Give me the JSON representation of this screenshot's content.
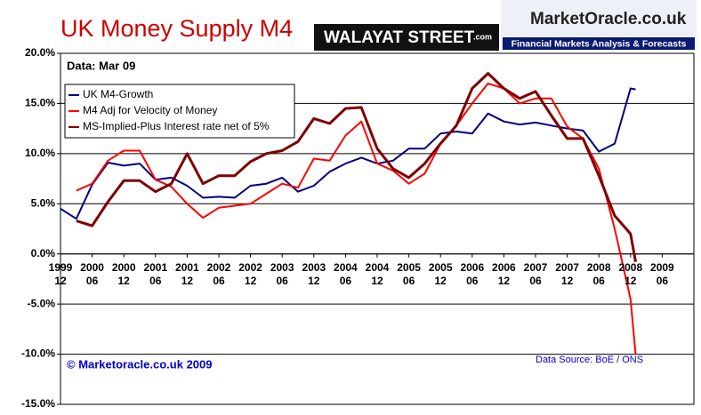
{
  "chart_data": {
    "type": "line",
    "title": "UK Money Supply M4",
    "logo_left": "WALAYAT STREET",
    "logo_left_suffix": ".com",
    "logo_right": "MarketOracle.co.uk",
    "logo_right_tagline": "Financial Markets Analysis & Forecasts",
    "annotations": [
      "Data: Mar 09",
      "© Marketoracle.co.uk  2009",
      "Data Source: BoE / ONS"
    ],
    "x": [
      1999.92,
      2000.17,
      2000.42,
      2000.67,
      2000.92,
      2001.17,
      2001.42,
      2001.67,
      2001.92,
      2002.17,
      2002.42,
      2002.67,
      2002.92,
      2003.17,
      2003.42,
      2003.67,
      2003.92,
      2004.17,
      2004.42,
      2004.67,
      2004.92,
      2005.17,
      2005.42,
      2005.67,
      2005.92,
      2006.17,
      2006.42,
      2006.67,
      2006.92,
      2007.17,
      2007.42,
      2007.67,
      2007.92,
      2008.17,
      2008.42,
      2008.67,
      2008.92,
      2009.0
    ],
    "series": [
      {
        "name": "UK M4-Growth",
        "color": "#000080",
        "values": [
          4.5,
          3.5,
          6.9,
          9.1,
          8.8,
          9.0,
          7.4,
          7.6,
          6.8,
          5.6,
          5.7,
          5.6,
          6.8,
          7.0,
          7.6,
          6.2,
          6.8,
          8.2,
          9.0,
          9.6,
          9.0,
          9.3,
          10.5,
          10.5,
          12.0,
          12.2,
          12.0,
          14.0,
          13.2,
          12.9,
          13.1,
          12.8,
          12.5,
          12.3,
          10.2,
          11.0,
          16.5,
          16.4
        ]
      },
      {
        "name": "M4 Adj for Velocity of Money",
        "color": "#ff0000",
        "values": [
          null,
          6.3,
          7.0,
          9.3,
          10.3,
          10.3,
          7.4,
          6.7,
          5.0,
          3.6,
          4.6,
          4.8,
          5.0,
          6.0,
          7.0,
          6.6,
          9.5,
          9.3,
          11.8,
          13.2,
          9.0,
          8.3,
          7.0,
          8.0,
          11.0,
          12.8,
          15.0,
          17.0,
          16.5,
          15.0,
          15.5,
          15.5,
          12.7,
          11.5,
          8.5,
          2.5,
          -4.5,
          -10
        ]
      },
      {
        "name": "MS-Implied-Plus Interest rate net of 5%",
        "color": "#800000",
        "values": [
          null,
          3.3,
          2.8,
          5.2,
          7.3,
          7.3,
          6.2,
          7.0,
          10.0,
          7.0,
          7.8,
          7.8,
          9.2,
          10.0,
          10.3,
          11.2,
          13.5,
          13.0,
          14.5,
          14.6,
          10.5,
          8.5,
          7.6,
          9.0,
          11.0,
          12.8,
          16.5,
          18.0,
          16.5,
          15.5,
          16.2,
          13.8,
          11.5,
          11.5,
          7.8,
          3.8,
          2.0,
          -0.8
        ]
      }
    ],
    "xlim": [
      1999.92,
      2009.92
    ],
    "xticks": [
      {
        "value": 1999.92,
        "label": "1999 12"
      },
      {
        "value": 2000.42,
        "label": "2000 06"
      },
      {
        "value": 2000.92,
        "label": "2000 12"
      },
      {
        "value": 2001.42,
        "label": "2001 06"
      },
      {
        "value": 2001.92,
        "label": "2001 12"
      },
      {
        "value": 2002.42,
        "label": "2002 06"
      },
      {
        "value": 2002.92,
        "label": "2002 12"
      },
      {
        "value": 2003.42,
        "label": "2003 06"
      },
      {
        "value": 2003.92,
        "label": "2003 12"
      },
      {
        "value": 2004.42,
        "label": "2004 06"
      },
      {
        "value": 2004.92,
        "label": "2004 12"
      },
      {
        "value": 2005.42,
        "label": "2005 06"
      },
      {
        "value": 2005.92,
        "label": "2005 12"
      },
      {
        "value": 2006.42,
        "label": "2006 06"
      },
      {
        "value": 2006.92,
        "label": "2006 12"
      },
      {
        "value": 2007.42,
        "label": "2007 06"
      },
      {
        "value": 2007.92,
        "label": "2007 12"
      },
      {
        "value": 2008.42,
        "label": "2008 06"
      },
      {
        "value": 2008.92,
        "label": "2008 12"
      },
      {
        "value": 2009.42,
        "label": "2009 06"
      }
    ],
    "ylim": [
      -15,
      20
    ],
    "yticks": [
      {
        "value": -15,
        "label": "-15.0%"
      },
      {
        "value": -10,
        "label": "-10.0%"
      },
      {
        "value": -5,
        "label": "-5.0%"
      },
      {
        "value": 0,
        "label": "0.0%"
      },
      {
        "value": 5,
        "label": "5.0%"
      },
      {
        "value": 10,
        "label": "10.0%"
      },
      {
        "value": 15,
        "label": "15.0%"
      },
      {
        "value": 20,
        "label": "20.0%"
      }
    ],
    "grid": true,
    "legend": "upper left"
  }
}
